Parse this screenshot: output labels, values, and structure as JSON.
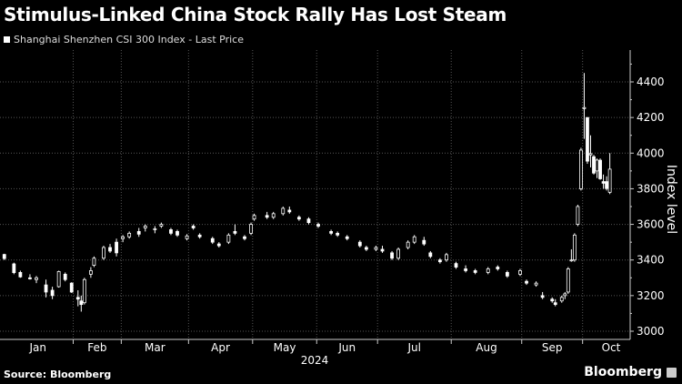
{
  "title": "Stimulus-Linked China Stock Rally Has Lost Steam",
  "legend": "Shanghai Shenzhen CSI 300 Index - Last Price",
  "source": "Source: Bloomberg",
  "logo": "Bloomberg",
  "colors": {
    "background": "#000000",
    "candle": "#ffffff",
    "grid": "#555555"
  },
  "chart_data": {
    "type": "candlestick",
    "title": "Stimulus-Linked China Stock Rally Has Lost Steam",
    "series_name": "Shanghai Shenzhen CSI 300 Index - Last Price",
    "ylabel": "Index level",
    "xlabel": "2024",
    "y_axis_side": "right",
    "yticks": [
      3000,
      3200,
      3400,
      3600,
      3800,
      4000,
      4200,
      4400
    ],
    "xticks": [
      "Jan",
      "Feb",
      "Mar",
      "Apr",
      "May",
      "Jun",
      "Jul",
      "Aug",
      "Sep",
      "Oct"
    ],
    "grid": true,
    "columns": [
      "date",
      "open",
      "high",
      "low",
      "close"
    ],
    "candles": [
      [
        "2024-01-02",
        3431,
        3435,
        3400,
        3408
      ],
      [
        "2024-01-05",
        3378,
        3385,
        3320,
        3329
      ],
      [
        "2024-01-09",
        3330,
        3340,
        3300,
        3305
      ],
      [
        "2024-01-12",
        3300,
        3320,
        3290,
        3294
      ],
      [
        "2024-01-16",
        3290,
        3310,
        3270,
        3300
      ],
      [
        "2024-01-19",
        3260,
        3290,
        3190,
        3220
      ],
      [
        "2024-01-23",
        3230,
        3250,
        3180,
        3200
      ],
      [
        "2024-01-25",
        3250,
        3340,
        3245,
        3335
      ],
      [
        "2024-01-29",
        3320,
        3330,
        3280,
        3290
      ],
      [
        "2024-01-31",
        3270,
        3275,
        3215,
        3220
      ],
      [
        "2024-02-02",
        3190,
        3230,
        3140,
        3180
      ],
      [
        "2024-02-05",
        3170,
        3200,
        3110,
        3150
      ],
      [
        "2024-02-06",
        3160,
        3300,
        3150,
        3290
      ],
      [
        "2024-02-08",
        3320,
        3360,
        3300,
        3340
      ],
      [
        "2024-02-19",
        3370,
        3420,
        3360,
        3410
      ],
      [
        "2024-02-22",
        3410,
        3480,
        3400,
        3470
      ],
      [
        "2024-02-26",
        3470,
        3490,
        3440,
        3450
      ],
      [
        "2024-02-28",
        3500,
        3520,
        3420,
        3440
      ],
      [
        "2024-03-01",
        3520,
        3540,
        3500,
        3530
      ],
      [
        "2024-03-05",
        3530,
        3560,
        3520,
        3550
      ],
      [
        "2024-03-08",
        3560,
        3580,
        3530,
        3545
      ],
      [
        "2024-03-12",
        3580,
        3600,
        3560,
        3590
      ],
      [
        "2024-03-15",
        3570,
        3590,
        3550,
        3575
      ],
      [
        "2024-03-19",
        3590,
        3610,
        3580,
        3600
      ],
      [
        "2024-03-22",
        3570,
        3580,
        3540,
        3550
      ],
      [
        "2024-03-26",
        3560,
        3570,
        3530,
        3540
      ],
      [
        "2024-03-29",
        3520,
        3545,
        3510,
        3535
      ],
      [
        "2024-04-02",
        3590,
        3600,
        3570,
        3580
      ],
      [
        "2024-04-08",
        3540,
        3550,
        3520,
        3530
      ],
      [
        "2024-04-12",
        3520,
        3530,
        3490,
        3500
      ],
      [
        "2024-04-16",
        3490,
        3500,
        3470,
        3480
      ],
      [
        "2024-04-19",
        3500,
        3550,
        3490,
        3540
      ],
      [
        "2024-04-23",
        3560,
        3600,
        3540,
        3550
      ],
      [
        "2024-04-26",
        3530,
        3540,
        3510,
        3520
      ],
      [
        "2024-04-30",
        3550,
        3610,
        3540,
        3600
      ],
      [
        "2024-05-06",
        3630,
        3660,
        3620,
        3650
      ],
      [
        "2024-05-10",
        3650,
        3670,
        3630,
        3640
      ],
      [
        "2024-05-14",
        3640,
        3670,
        3630,
        3660
      ],
      [
        "2024-05-17",
        3660,
        3700,
        3650,
        3690
      ],
      [
        "2024-05-21",
        3680,
        3700,
        3660,
        3670
      ],
      [
        "2024-05-24",
        3640,
        3650,
        3620,
        3630
      ],
      [
        "2024-05-29",
        3630,
        3640,
        3600,
        3610
      ],
      [
        "2024-06-03",
        3600,
        3610,
        3580,
        3590
      ],
      [
        "2024-06-07",
        3560,
        3570,
        3540,
        3550
      ],
      [
        "2024-06-12",
        3550,
        3560,
        3530,
        3540
      ],
      [
        "2024-06-17",
        3530,
        3540,
        3510,
        3520
      ],
      [
        "2024-06-21",
        3500,
        3510,
        3470,
        3480
      ],
      [
        "2024-06-25",
        3470,
        3480,
        3450,
        3460
      ],
      [
        "2024-06-28",
        3460,
        3480,
        3450,
        3470
      ],
      [
        "2024-07-02",
        3460,
        3480,
        3440,
        3450
      ],
      [
        "2024-07-05",
        3440,
        3450,
        3400,
        3410
      ],
      [
        "2024-07-09",
        3410,
        3470,
        3400,
        3460
      ],
      [
        "2024-07-12",
        3470,
        3510,
        3460,
        3500
      ],
      [
        "2024-07-16",
        3500,
        3540,
        3490,
        3530
      ],
      [
        "2024-07-19",
        3510,
        3530,
        3480,
        3490
      ],
      [
        "2024-07-23",
        3440,
        3450,
        3410,
        3420
      ],
      [
        "2024-07-26",
        3400,
        3410,
        3380,
        3390
      ],
      [
        "2024-07-30",
        3400,
        3440,
        3390,
        3430
      ],
      [
        "2024-08-02",
        3380,
        3390,
        3350,
        3360
      ],
      [
        "2024-08-07",
        3350,
        3370,
        3330,
        3340
      ],
      [
        "2024-08-12",
        3340,
        3350,
        3320,
        3330
      ],
      [
        "2024-08-16",
        3330,
        3360,
        3320,
        3350
      ],
      [
        "2024-08-21",
        3360,
        3370,
        3340,
        3350
      ],
      [
        "2024-08-26",
        3330,
        3340,
        3300,
        3310
      ],
      [
        "2024-08-30",
        3320,
        3350,
        3310,
        3340
      ],
      [
        "2024-09-03",
        3280,
        3290,
        3260,
        3270
      ],
      [
        "2024-09-06",
        3260,
        3280,
        3250,
        3270
      ],
      [
        "2024-09-10",
        3200,
        3220,
        3180,
        3190
      ],
      [
        "2024-09-13",
        3180,
        3190,
        3160,
        3170
      ],
      [
        "2024-09-18",
        3160,
        3180,
        3140,
        3150
      ],
      [
        "2024-09-20",
        3170,
        3200,
        3160,
        3190
      ],
      [
        "2024-09-23",
        3200,
        3220,
        3180,
        3210
      ],
      [
        "2024-09-24",
        3220,
        3360,
        3210,
        3350
      ],
      [
        "2024-09-25",
        3400,
        3460,
        3390,
        3400
      ],
      [
        "2024-09-26",
        3400,
        3550,
        3390,
        3540
      ],
      [
        "2024-09-27",
        3600,
        3710,
        3590,
        3700
      ],
      [
        "2024-09-30",
        3800,
        4030,
        3790,
        4017
      ],
      [
        "2024-10-08",
        4250,
        4450,
        4080,
        4256
      ],
      [
        "2024-10-09",
        4200,
        4200,
        3940,
        3955
      ],
      [
        "2024-10-10",
        3990,
        4100,
        3920,
        3997
      ],
      [
        "2024-10-11",
        3980,
        3990,
        3880,
        3888
      ],
      [
        "2024-10-14",
        3900,
        3970,
        3860,
        3961
      ],
      [
        "2024-10-15",
        3960,
        3970,
        3850,
        3856
      ],
      [
        "2024-10-16",
        3840,
        3880,
        3800,
        3831
      ],
      [
        "2024-10-17",
        3840,
        3870,
        3790,
        3801
      ],
      [
        "2024-10-18",
        3780,
        4000,
        3770,
        3910
      ]
    ]
  }
}
